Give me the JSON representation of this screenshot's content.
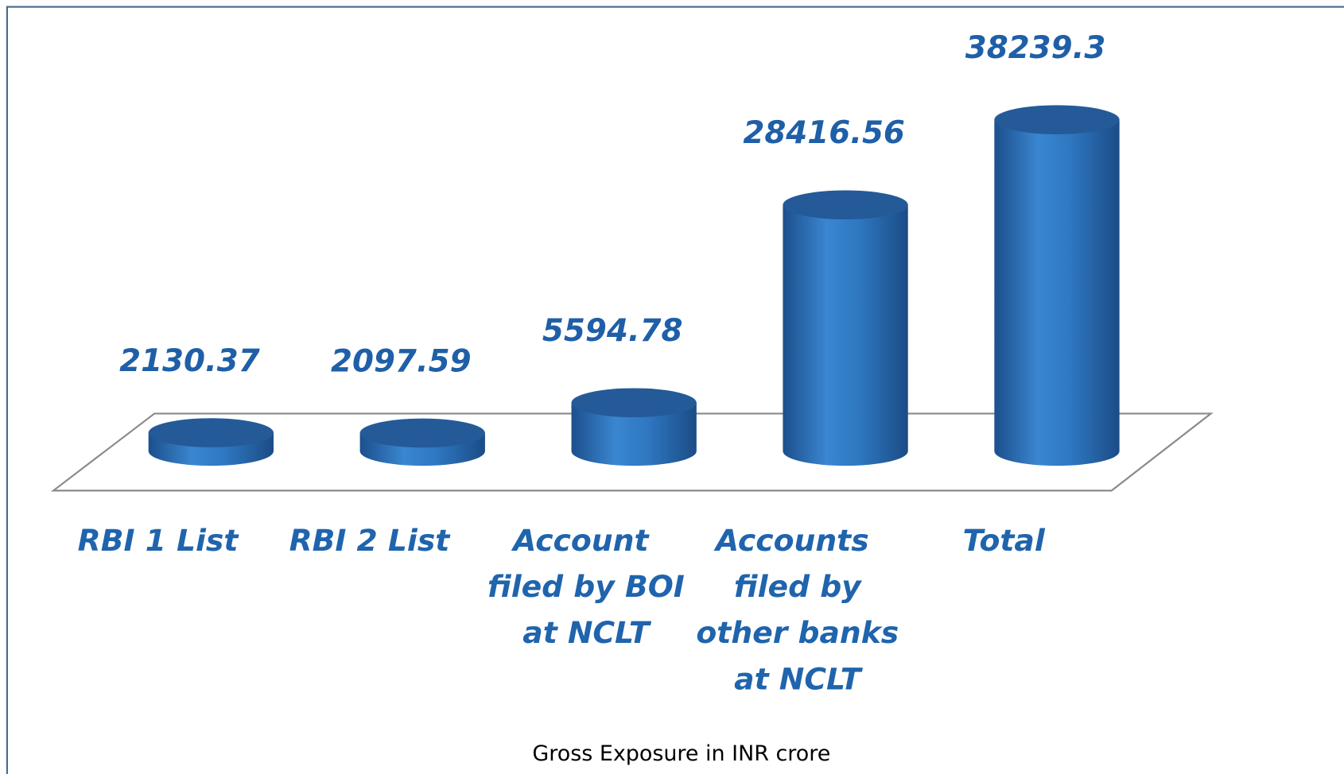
{
  "chart_data": {
    "type": "bar",
    "x_label": "Gross Exposure in INR crore",
    "categories": [
      "RBI 1 List",
      "RBI 2 List",
      "Account filed by BOI at NCLT",
      "Accounts filed by other banks at NCLT",
      "Total"
    ],
    "values": [
      2130.37,
      2097.59,
      5594.78,
      28416.56,
      38239.3
    ],
    "color": "#2e75c0",
    "ylim": [
      0,
      40000
    ]
  }
}
